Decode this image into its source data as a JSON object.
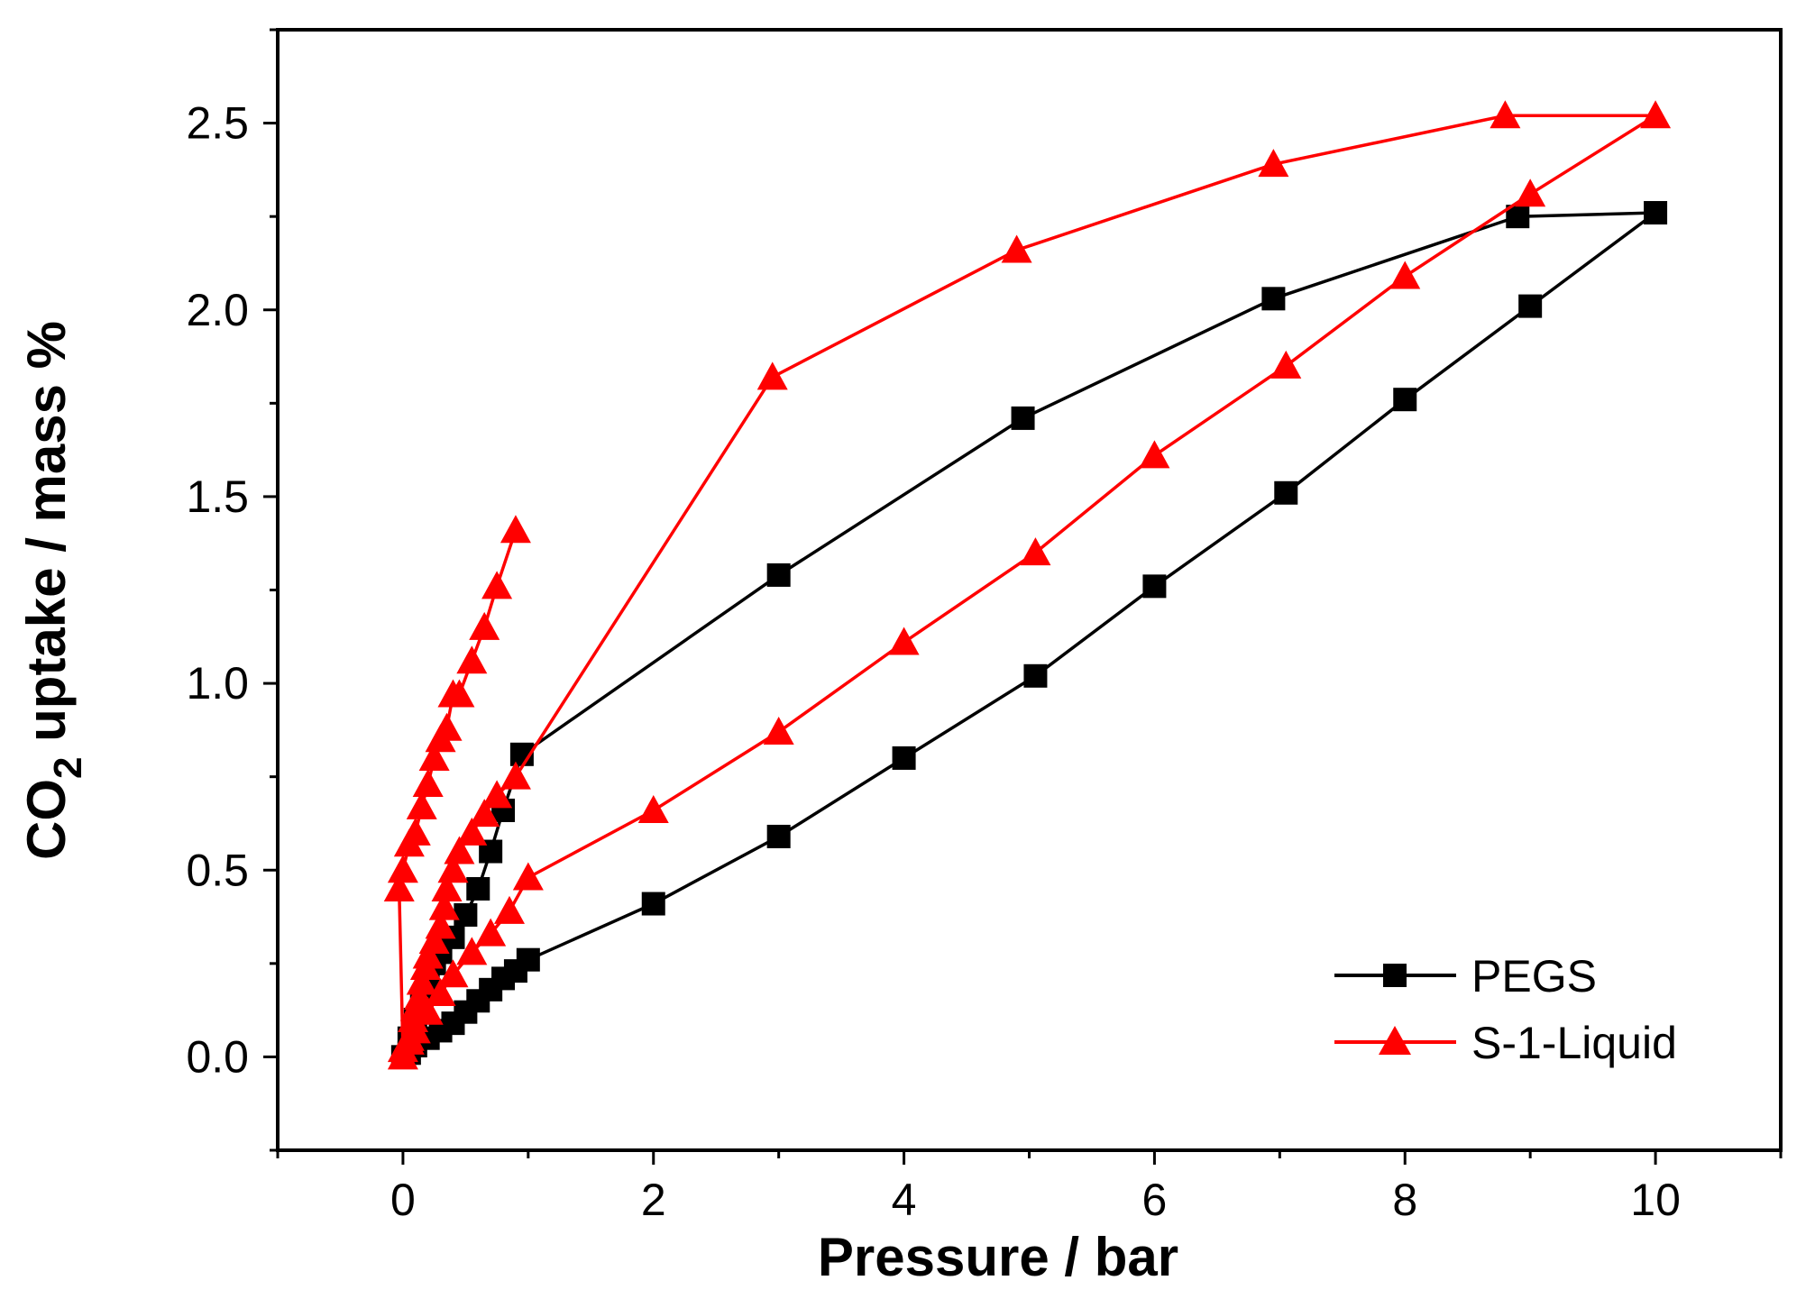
{
  "chart_data": {
    "type": "line",
    "title": "",
    "xlabel": "Pressure / bar",
    "ylabel": {
      "prefix": "CO",
      "subscript": "2",
      "suffix": " uptake / mass %"
    },
    "xlim": [
      -1,
      11
    ],
    "ylim": [
      -0.25,
      2.75
    ],
    "xticks": [
      0,
      2,
      4,
      6,
      8,
      10
    ],
    "yticks": [
      0.0,
      0.5,
      1.0,
      1.5,
      2.0,
      2.5
    ],
    "xtick_labels": [
      "0",
      "2",
      "4",
      "6",
      "8",
      "10"
    ],
    "ytick_labels": [
      "0.0",
      "0.5",
      "1.0",
      "1.5",
      "2.0",
      "2.5"
    ],
    "grid": false,
    "legend_position": "bottom-right",
    "series": [
      {
        "name": "PEGS",
        "color": "#000000",
        "marker": "square",
        "x": [
          0,
          0.05,
          0.1,
          0.15,
          0.2,
          0.25,
          0.3,
          0.4,
          0.5,
          0.6,
          0.7,
          0.8,
          0.95,
          3.0,
          4.95,
          6.95,
          8.9,
          10.0,
          9.0,
          8.0,
          7.05,
          6.0,
          5.05,
          4.0,
          3.0,
          2.0,
          1.0,
          0.9,
          0.8,
          0.7,
          0.6,
          0.5,
          0.4,
          0.3,
          0.2,
          0.1,
          0.05,
          0
        ],
        "y": [
          0.0,
          0.05,
          0.1,
          0.15,
          0.2,
          0.25,
          0.28,
          0.32,
          0.38,
          0.45,
          0.55,
          0.66,
          0.81,
          1.29,
          1.71,
          2.03,
          2.25,
          2.26,
          2.01,
          1.76,
          1.51,
          1.26,
          1.02,
          0.8,
          0.59,
          0.41,
          0.26,
          0.23,
          0.21,
          0.18,
          0.15,
          0.12,
          0.09,
          0.07,
          0.05,
          0.03,
          0.01,
          0.0
        ]
      },
      {
        "name": "S-1-Liquid",
        "color": "#ff0000",
        "marker": "triangle",
        "x": [
          0,
          0.05,
          0.08,
          0.1,
          0.13,
          0.15,
          0.18,
          0.2,
          0.25,
          0.3,
          0.33,
          0.35,
          0.4,
          0.45,
          0.55,
          0.65,
          0.75,
          0.9,
          2.95,
          4.9,
          6.95,
          8.8,
          10.0,
          9.0,
          8.0,
          7.05,
          6.0,
          5.05,
          4.0,
          3.0,
          2.0,
          1.0,
          0.85,
          0.7,
          0.55,
          0.4,
          0.3,
          0.2,
          0.1,
          0.05,
          0,
          -0.03,
          0.0,
          0.05,
          0.1,
          0.15,
          0.2,
          0.25,
          0.3,
          0.35,
          0.4
        ],
        "y": [
          0.0,
          0.05,
          0.1,
          0.13,
          0.16,
          0.2,
          0.24,
          0.27,
          0.31,
          0.35,
          0.4,
          0.45,
          0.5,
          0.55,
          0.6,
          0.65,
          0.7,
          0.75,
          1.82,
          2.16,
          2.39,
          2.52,
          2.52,
          2.31,
          2.09,
          1.85,
          1.61,
          1.35,
          1.11,
          0.87,
          0.66,
          0.48,
          0.39,
          0.33,
          0.28,
          0.22,
          0.17,
          0.12,
          0.07,
          0.04,
          0.02,
          0.45,
          0.5,
          0.57,
          0.6,
          0.67,
          0.73,
          0.8,
          0.85,
          0.88,
          0.97
        ],
        "adsorption_tail": {
          "x": [
            0.45,
            0.55,
            0.65,
            0.75,
            0.9
          ],
          "y": [
            0.97,
            1.06,
            1.15,
            1.26,
            1.41
          ]
        }
      }
    ]
  }
}
